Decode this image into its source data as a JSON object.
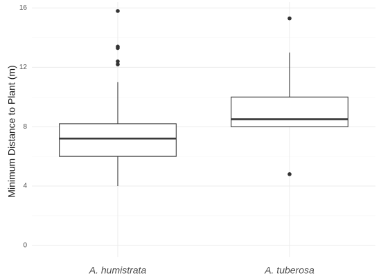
{
  "chart_data": {
    "type": "box",
    "ylabel": "Minimum Distance to Plant (m)",
    "xlabel": "",
    "ylim": [
      -0.8,
      16.4
    ],
    "yticks": [
      0,
      4,
      8,
      12,
      16
    ],
    "ytick_labels": [
      "0",
      "4",
      "8",
      "12",
      "16"
    ],
    "grid": true,
    "categories": [
      "A. humistrata",
      "A. tuberosa"
    ],
    "boxes": [
      {
        "category": "A. humistrata",
        "whisker_low": 4.0,
        "q1": 6.0,
        "median": 7.2,
        "q3": 8.2,
        "whisker_high": 11.0,
        "outliers": [
          12.2,
          12.4,
          13.3,
          13.4,
          15.8
        ]
      },
      {
        "category": "A. tuberosa",
        "whisker_low": 8.0,
        "q1": 8.0,
        "median": 8.5,
        "q3": 10.0,
        "whisker_high": 13.0,
        "outliers": [
          4.8,
          15.3
        ]
      }
    ],
    "colors": {
      "grid_major": "#ebebeb",
      "grid_minor": "#f5f5f5",
      "box_line": "#333333",
      "median_line": "#333333",
      "outlier": "#333333"
    }
  }
}
